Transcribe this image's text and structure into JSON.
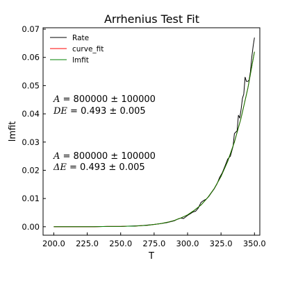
{
  "chart_data": {
    "type": "line",
    "title": "Arrhenius Test Fit",
    "xlabel": "T",
    "ylabel": "lmfit",
    "xlim": [
      192,
      354
    ],
    "ylim": [
      -0.003,
      0.0705
    ],
    "xticks": [
      200.0,
      225.0,
      250.0,
      275.0,
      300.0,
      325.0,
      350.0
    ],
    "xtick_labels": [
      "200.0",
      "225.0",
      "250.0",
      "275.0",
      "300.0",
      "325.0",
      "350.0"
    ],
    "yticks": [
      0.0,
      0.01,
      0.02,
      0.03,
      0.04,
      0.05,
      0.06,
      0.07
    ],
    "ytick_labels": [
      "0.00",
      "0.01",
      "0.02",
      "0.03",
      "0.04",
      "0.05",
      "0.06",
      "0.07"
    ],
    "grid": false,
    "legend": "top-left",
    "series": [
      {
        "name": "Rate",
        "color": "#000000",
        "x": [
          200,
          210,
          220,
          230,
          240,
          250,
          255,
          260,
          265,
          270,
          275,
          280,
          285,
          290,
          293,
          295,
          297,
          300,
          302,
          304,
          306,
          308,
          310,
          312,
          314,
          316,
          318,
          320,
          322,
          324,
          326,
          328,
          330,
          332,
          334,
          335,
          336,
          337,
          338,
          339,
          340,
          341,
          342,
          343,
          344,
          345,
          346,
          347,
          348,
          349,
          350
        ],
        "y": [
          0.0,
          0.0,
          0.0,
          0.0,
          0.0001,
          0.0001,
          0.0002,
          0.0003,
          0.0004,
          0.0006,
          0.0008,
          0.0011,
          0.0015,
          0.0021,
          0.0028,
          0.0031,
          0.0029,
          0.004,
          0.0046,
          0.0052,
          0.0055,
          0.0066,
          0.0086,
          0.0093,
          0.0098,
          0.0108,
          0.0122,
          0.0135,
          0.0152,
          0.0175,
          0.0192,
          0.0215,
          0.024,
          0.025,
          0.0285,
          0.033,
          0.0335,
          0.034,
          0.0395,
          0.0385,
          0.0415,
          0.0455,
          0.047,
          0.053,
          0.0515,
          0.0515,
          0.052,
          0.055,
          0.06,
          0.064,
          0.067
        ]
      },
      {
        "name": "curve_fit",
        "color": "#ff0000",
        "x": [
          200,
          210,
          220,
          230,
          240,
          250,
          255,
          260,
          265,
          270,
          275,
          280,
          285,
          290,
          295,
          300,
          305,
          310,
          315,
          320,
          325,
          330,
          335,
          340,
          345,
          350
        ],
        "y": [
          0.0,
          0.0,
          0.0,
          0.0,
          0.0001,
          0.0001,
          0.0002,
          0.0002,
          0.0004,
          0.0005,
          0.0008,
          0.0011,
          0.0016,
          0.0022,
          0.0031,
          0.0042,
          0.0058,
          0.0077,
          0.0103,
          0.0136,
          0.0178,
          0.0232,
          0.03,
          0.0385,
          0.049,
          0.062
        ]
      },
      {
        "name": "lmfit",
        "color": "#008000",
        "x": [
          200,
          210,
          220,
          230,
          240,
          250,
          255,
          260,
          265,
          270,
          275,
          280,
          285,
          290,
          295,
          300,
          305,
          310,
          315,
          320,
          325,
          330,
          335,
          340,
          345,
          350
        ],
        "y": [
          0.0,
          0.0,
          0.0,
          0.0,
          0.0001,
          0.0001,
          0.0002,
          0.0002,
          0.0004,
          0.0005,
          0.0008,
          0.0011,
          0.0016,
          0.0022,
          0.0031,
          0.0042,
          0.0058,
          0.0077,
          0.0103,
          0.0136,
          0.0178,
          0.0232,
          0.03,
          0.0385,
          0.049,
          0.062
        ]
      }
    ],
    "annotations": [
      {
        "sym1": "A",
        "eq1": " = 800000 ± 100000",
        "sym2": "DE",
        "eq2": " = 0.493 ± 0.005"
      },
      {
        "sym1": "A",
        "eq1": " = 800000 ± 100000",
        "sym2": "ΔE",
        "eq2": " = 0.493 ± 0.005"
      }
    ]
  }
}
